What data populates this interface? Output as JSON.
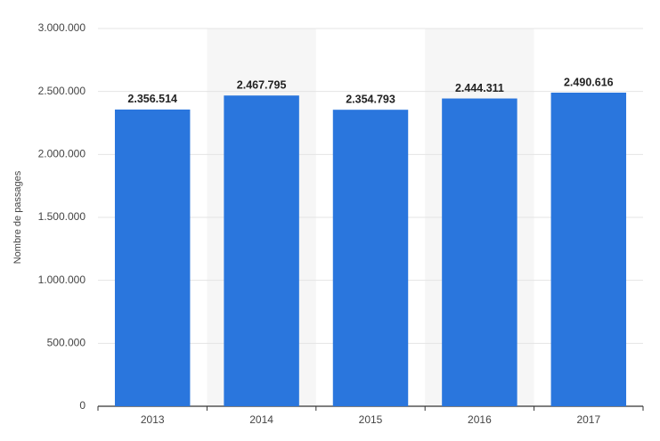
{
  "chart_data": {
    "type": "bar",
    "y_label": "Nombre de passages",
    "categories": [
      "2013",
      "2014",
      "2015",
      "2016",
      "2017"
    ],
    "values": [
      2356514,
      2467795,
      2354793,
      2444311,
      2490616
    ],
    "value_labels": [
      "2.356.514",
      "2.467.795",
      "2.354.793",
      "2.444.311",
      "2.490.616"
    ],
    "color": "#2a76dd",
    "ylim": [
      0,
      3000000
    ],
    "yticks": [
      0,
      {
        "value": 500000,
        "label": "500.000"
      },
      {
        "value": 1000000,
        "label": "1.000.000"
      },
      {
        "value": 1500000,
        "label": "1.500.000"
      },
      {
        "value": 2000000,
        "label": "2.000.000"
      },
      {
        "value": 2500000,
        "label": "2.500.000"
      },
      {
        "value": 3000000,
        "label": "3.000.000"
      }
    ],
    "grid": true
  }
}
